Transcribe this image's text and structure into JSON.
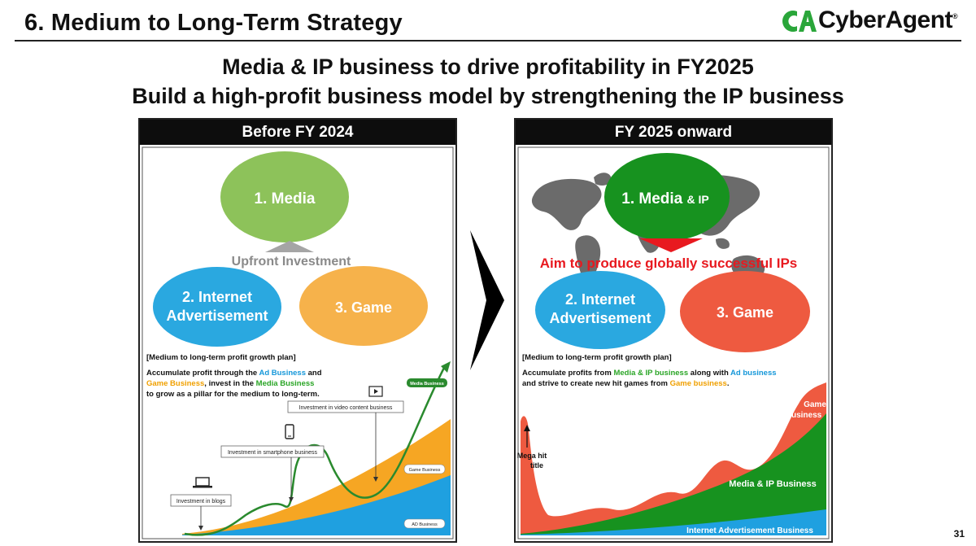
{
  "header": {
    "title": "6.  Medium to Long-Term Strategy",
    "logo_text": "CyberAgent",
    "logo_mark": "CA"
  },
  "headline": {
    "line1": "Media & IP business to drive profitability in FY2025",
    "line2": "Build a high-profit business model by strengthening the IP business"
  },
  "left_panel": {
    "title": "Before FY 2024",
    "circles": {
      "media": "1. Media",
      "internet_line1": "2. Internet",
      "internet_line2": "Advertisement",
      "game": "3. Game"
    },
    "upfront_label": "Upfront Investment",
    "plan_heading": "[Medium to long-term profit growth plan]",
    "plan": {
      "t1": "Accumulate profit through the ",
      "ad": "Ad Business",
      "t2": " and",
      "game": "Game Business",
      "t3": ", invest in the ",
      "media": "Media Business",
      "t4": "to grow as a pillar for the medium to long-term."
    },
    "callouts": {
      "video": "Investment in video content business",
      "smartphone": "Investment in smartphone business",
      "blogs": "Investment in blogs"
    },
    "labels": {
      "media_business": "Media Business",
      "game_business": "Game Business",
      "ad_business": "AD Business"
    }
  },
  "right_panel": {
    "title": "FY 2025 onward",
    "circles": {
      "media_a": "1. Media ",
      "media_b": "& IP",
      "internet_line1": "2. Internet",
      "internet_line2": "Advertisement",
      "game": "3. Game"
    },
    "aim_text": "Aim to produce globally successful IPs",
    "plan_heading": "[Medium to long-term profit growth plan]",
    "plan": {
      "t1": "Accumulate profits from ",
      "mediaip": "Media & IP business",
      "t2": " along with ",
      "ad": "Ad business",
      "t3": "and strive to create new hit games from ",
      "game": "Game business",
      "t4": "."
    },
    "labels": {
      "game_l1": "Game",
      "game_l2": "Business",
      "mega_l1": "Mega hit",
      "mega_l2": "title",
      "media_ip": "Media & IP Business",
      "internet_ad": "Internet Advertisement Business"
    }
  },
  "page_number": "31",
  "colors": {
    "media_green": "#8dc25a",
    "media_ip_green": "#17921f",
    "internet_blue": "#2aa8e0",
    "game_orange": "#f6b24b",
    "game_red": "#ee5a40",
    "aim_red": "#e8191f",
    "ad_text_blue": "#1597d9",
    "game_text_orange": "#f0a000",
    "media_text_green": "#2aa526"
  }
}
